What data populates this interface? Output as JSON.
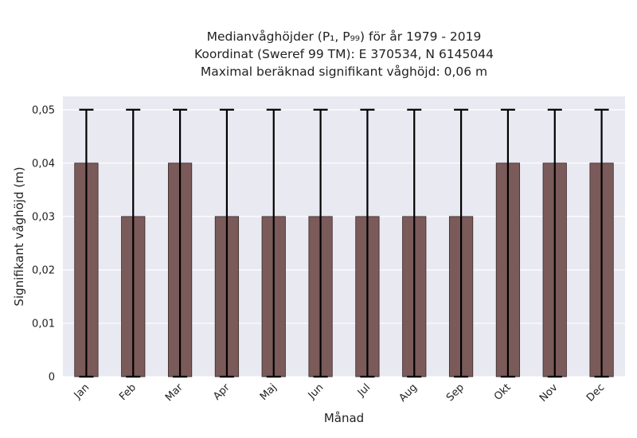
{
  "chart_data": {
    "type": "bar",
    "title_lines": [
      "Medianvåghöjder (P₁, P₉₉) för år 1979 - 2019",
      "Koordinat (Sweref 99 TM): E 370534, N 6145044",
      "Maximal beräknad signifikant våghöjd: 0,06 m"
    ],
    "xlabel": "Månad",
    "ylabel": "Signifikant våghöjd (m)",
    "categories": [
      "Jan",
      "Feb",
      "Mar",
      "Apr",
      "Maj",
      "Jun",
      "Jul",
      "Aug",
      "Sep",
      "Okt",
      "Nov",
      "Dec"
    ],
    "values": [
      0.04,
      0.03,
      0.04,
      0.03,
      0.03,
      0.03,
      0.03,
      0.03,
      0.03,
      0.04,
      0.04,
      0.04
    ],
    "error_low": [
      0,
      0,
      0,
      0,
      0,
      0,
      0,
      0,
      0,
      0,
      0,
      0
    ],
    "error_high": [
      0.05,
      0.05,
      0.05,
      0.05,
      0.05,
      0.05,
      0.05,
      0.05,
      0.05,
      0.05,
      0.05,
      0.05
    ],
    "ylim": [
      0,
      0.0525
    ],
    "yticks": [
      0,
      0.01,
      0.02,
      0.03,
      0.04,
      0.05
    ],
    "ytick_labels": [
      "0",
      "0,01",
      "0,02",
      "0,03",
      "0,04",
      "0,05"
    ],
    "grid": true,
    "colors": {
      "bar": "#7b5a5a",
      "plot_background": "#e9e9f2",
      "error_bar": "#000000"
    }
  }
}
